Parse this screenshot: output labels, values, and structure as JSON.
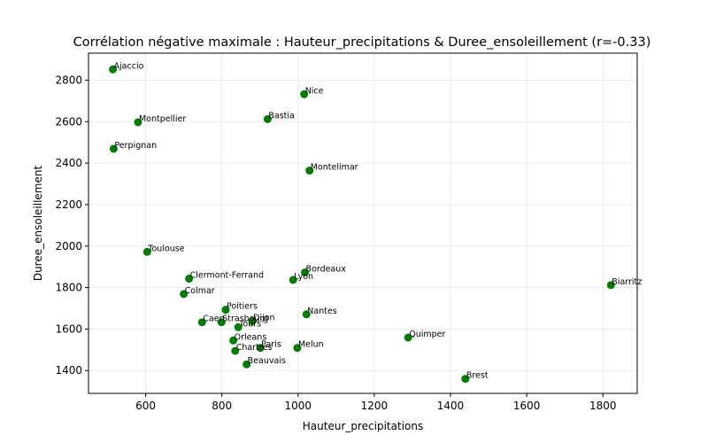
{
  "chart_data": {
    "type": "scatter",
    "title": "Corrélation négative maximale : Hauteur_precipitations & Duree_ensoleillement (r=-0.33)",
    "xlabel": "Hauteur_precipitations",
    "ylabel": "Duree_ensoleillement",
    "xlim": [
      450,
      1890
    ],
    "ylim": [
      1290,
      2930
    ],
    "xticks": [
      600,
      800,
      1000,
      1200,
      1400,
      1600,
      1800
    ],
    "yticks": [
      1400,
      1600,
      1800,
      2000,
      2200,
      2400,
      2600,
      2800
    ],
    "grid": true,
    "marker_color": "#008000",
    "points": [
      {
        "label": "Ajaccio",
        "x": 514,
        "y": 2852
      },
      {
        "label": "Nice",
        "x": 1016,
        "y": 2732
      },
      {
        "label": "Montpellier",
        "x": 580,
        "y": 2597
      },
      {
        "label": "Bastia",
        "x": 920,
        "y": 2612
      },
      {
        "label": "Perpignan",
        "x": 516,
        "y": 2469
      },
      {
        "label": "Montelimar",
        "x": 1030,
        "y": 2364
      },
      {
        "label": "Toulouse",
        "x": 604,
        "y": 1972
      },
      {
        "label": "Bordeaux",
        "x": 1018,
        "y": 1873
      },
      {
        "label": "Clermont-Ferrand",
        "x": 714,
        "y": 1843
      },
      {
        "label": "Lyon",
        "x": 987,
        "y": 1837
      },
      {
        "label": "Biarritz",
        "x": 1821,
        "y": 1812
      },
      {
        "label": "Colmar",
        "x": 700,
        "y": 1769
      },
      {
        "label": "Poitiers",
        "x": 810,
        "y": 1693
      },
      {
        "label": "Nantes",
        "x": 1022,
        "y": 1671
      },
      {
        "label": "Caen",
        "x": 748,
        "y": 1633
      },
      {
        "label": "Strasbourg",
        "x": 799,
        "y": 1633
      },
      {
        "label": "Dijon",
        "x": 880,
        "y": 1638
      },
      {
        "label": "Tours",
        "x": 843,
        "y": 1609
      },
      {
        "label": "Quimper",
        "x": 1289,
        "y": 1559
      },
      {
        "label": "Orleans",
        "x": 830,
        "y": 1545
      },
      {
        "label": "Paris",
        "x": 901,
        "y": 1509
      },
      {
        "label": "Melun",
        "x": 998,
        "y": 1509
      },
      {
        "label": "Chartres",
        "x": 835,
        "y": 1495
      },
      {
        "label": "Beauvais",
        "x": 865,
        "y": 1430
      },
      {
        "label": "Brest",
        "x": 1439,
        "y": 1360
      }
    ]
  }
}
